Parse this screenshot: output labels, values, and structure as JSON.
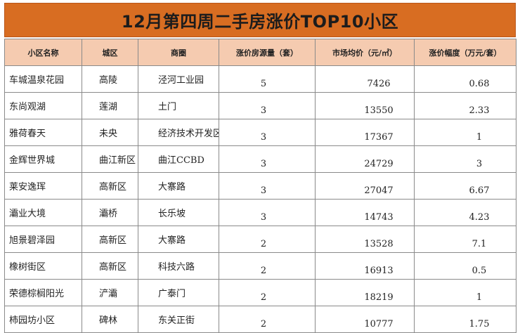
{
  "title": "12月第四周二手房涨价TOP10小区",
  "colors": {
    "title_bg": "#d86d22",
    "header_bg": "#f5cbb0",
    "border": "#8a8a8a"
  },
  "headers": [
    "小区名称",
    "城区",
    "商圈",
    "涨价房源量（套）",
    "市场均价（元/㎡）",
    "涨价幅度（万元/套）"
  ],
  "rows": [
    [
      "车城温泉花园",
      "高陵",
      "泾河工业园",
      "5",
      "7426",
      "0.68"
    ],
    [
      "东尚观湖",
      "莲湖",
      "土门",
      "3",
      "13550",
      "2.33"
    ],
    [
      "雅荷春天",
      "未央",
      "经济技术开发区",
      "3",
      "17367",
      "1"
    ],
    [
      "金辉世界城",
      "曲江新区",
      "曲江CCBD",
      "3",
      "24729",
      "3"
    ],
    [
      "莱安逸珲",
      "高新区",
      "大寨路",
      "3",
      "27047",
      "6.67"
    ],
    [
      "灞业大境",
      "灞桥",
      "长乐坡",
      "3",
      "14743",
      "4.23"
    ],
    [
      "旭景碧泽园",
      "高新区",
      "大寨路",
      "2",
      "13528",
      "7.1"
    ],
    [
      "橡树街区",
      "高新区",
      "科技六路",
      "2",
      "16913",
      "0.5"
    ],
    [
      "荣德棕榈阳光",
      "浐灞",
      "广泰门",
      "2",
      "18219",
      "1"
    ],
    [
      "柿园坊小区",
      "碑林",
      "东关正街",
      "2",
      "10777",
      "1.75"
    ]
  ]
}
